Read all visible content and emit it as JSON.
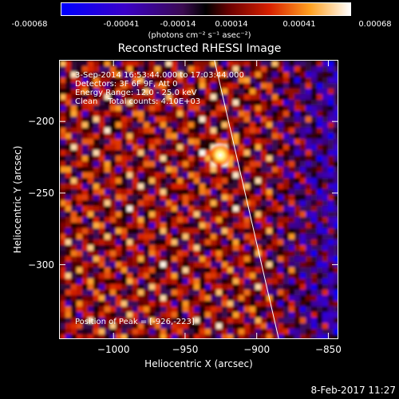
{
  "colorbar": {
    "ticks": [
      "-0.00068",
      "-0.00041",
      "-0.00014",
      "0.00014",
      "0.00041",
      "0.00068"
    ],
    "units_label": "(photons cm⁻² s⁻¹ asec⁻²)"
  },
  "header": {
    "timestamp": "8-Feb-2017 11:27"
  },
  "chart_data": {
    "type": "heatmap",
    "title": "Reconstructed RHESSI Image",
    "xlabel": "Heliocentric X (arcsec)",
    "ylabel": "Heliocentric Y (arcsec)",
    "xlim": [
      -1038,
      -843
    ],
    "ylim": [
      -352,
      -157
    ],
    "x_ticks": [
      -1000,
      -950,
      -900,
      -850
    ],
    "y_ticks": [
      -200,
      -250,
      -300
    ],
    "x_tick_labels": [
      "−1000",
      "−950",
      "−900",
      "−850"
    ],
    "y_tick_labels": [
      "−200",
      "−250",
      "−300"
    ],
    "colorbar_range": [
      -0.00068,
      0.00068
    ],
    "peak": {
      "x": -926,
      "y": -223
    },
    "limb_line": {
      "x1": -930,
      "y1": -157,
      "x2": -885,
      "y2": -352
    },
    "annotations": {
      "line1": "3-Sep-2014 16:53:44.000 to 17:03:44.000",
      "line2": "Detectors: 3F 6F 9F, Att 0",
      "line3": "Energy Range: 12.0 - 25.0 keV",
      "line4": "Clean    Total counts: 4.10E+03",
      "peak_label": "Position of Peak = [-926,-223]"
    }
  }
}
